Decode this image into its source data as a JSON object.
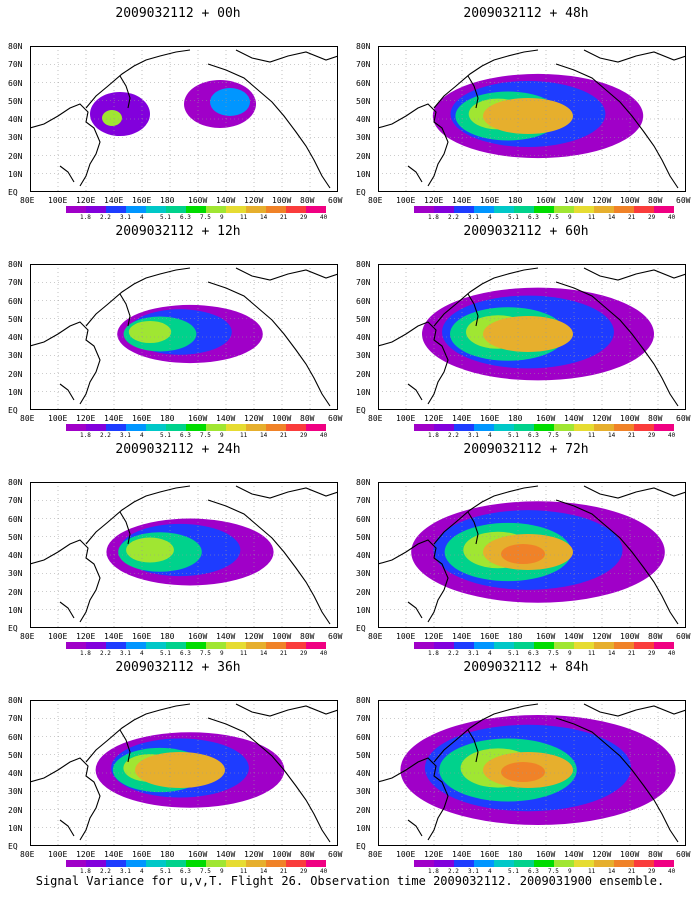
{
  "panels": [
    {
      "title": "2009032112 + 00h",
      "level": 0
    },
    {
      "title": "2009032112 + 48h",
      "level": 4
    },
    {
      "title": "2009032112 + 12h",
      "level": 1
    },
    {
      "title": "2009032112 + 60h",
      "level": 5
    },
    {
      "title": "2009032112 + 24h",
      "level": 2
    },
    {
      "title": "2009032112 + 72h",
      "level": 6
    },
    {
      "title": "2009032112 + 36h",
      "level": 3
    },
    {
      "title": "2009032112 + 84h",
      "level": 7
    }
  ],
  "lat_labels": [
    "80N",
    "70N",
    "60N",
    "50N",
    "40N",
    "30N",
    "20N",
    "10N",
    "EQ"
  ],
  "lon_labels": [
    "80E",
    "100E",
    "120E",
    "140E",
    "160E",
    "180",
    "160W",
    "140W",
    "120W",
    "100W",
    "80W",
    "60W"
  ],
  "colorbar": {
    "labels": [
      "1.8",
      "2.2",
      "3.1",
      "4",
      "5.1",
      "6.3",
      "7.5",
      "9",
      "11",
      "14",
      "21",
      "29",
      "40"
    ],
    "colors": [
      "#a000c8",
      "#8200dc",
      "#1e3cff",
      "#0096ff",
      "#00c8c8",
      "#00d28c",
      "#00dc00",
      "#a0e632",
      "#e6dc32",
      "#e6af2d",
      "#f08228",
      "#fa3c3c",
      "#f00082"
    ]
  },
  "caption": "Signal Variance for u,v,T. Flight 26. Observation time 2009032112. 2009031900 ensemble."
}
